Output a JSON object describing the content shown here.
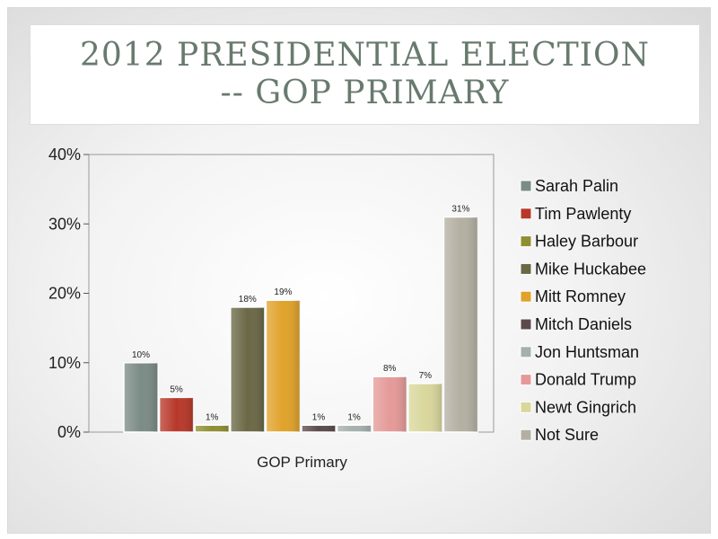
{
  "slide": {
    "title": "2012 PRESIDENTIAL ELECTION -- GOP PRIMARY"
  },
  "chart_data": {
    "type": "bar",
    "categories": [
      "GOP Primary"
    ],
    "ylim": [
      0,
      40
    ],
    "yticks": [
      "0%",
      "10%",
      "20%",
      "30%",
      "40%"
    ],
    "grid": false,
    "legend_position": "right",
    "series": [
      {
        "name": "Sarah Palin",
        "value": 10,
        "label": "10%",
        "color": "#7b8b85"
      },
      {
        "name": "Tim Pawlenty",
        "value": 5,
        "label": "5%",
        "color": "#b7382a"
      },
      {
        "name": "Haley Barbour",
        "value": 1,
        "label": "1%",
        "color": "#8f8f32"
      },
      {
        "name": "Mike Huckabee",
        "value": 18,
        "label": "18%",
        "color": "#6a6845"
      },
      {
        "name": "Mitt Romney",
        "value": 19,
        "label": "19%",
        "color": "#e0a22a"
      },
      {
        "name": "Mitch Daniels",
        "value": 1,
        "label": "1%",
        "color": "#5b4a4c"
      },
      {
        "name": "Jon Huntsman",
        "value": 1,
        "label": "1%",
        "color": "#a3b0ae"
      },
      {
        "name": "Donald Trump",
        "value": 8,
        "label": "8%",
        "color": "#e49a98"
      },
      {
        "name": "Newt Gingrich",
        "value": 7,
        "label": "7%",
        "color": "#d9d79c"
      },
      {
        "name": "Not Sure",
        "value": 31,
        "label": "31%",
        "color": "#b3afa2"
      }
    ]
  }
}
